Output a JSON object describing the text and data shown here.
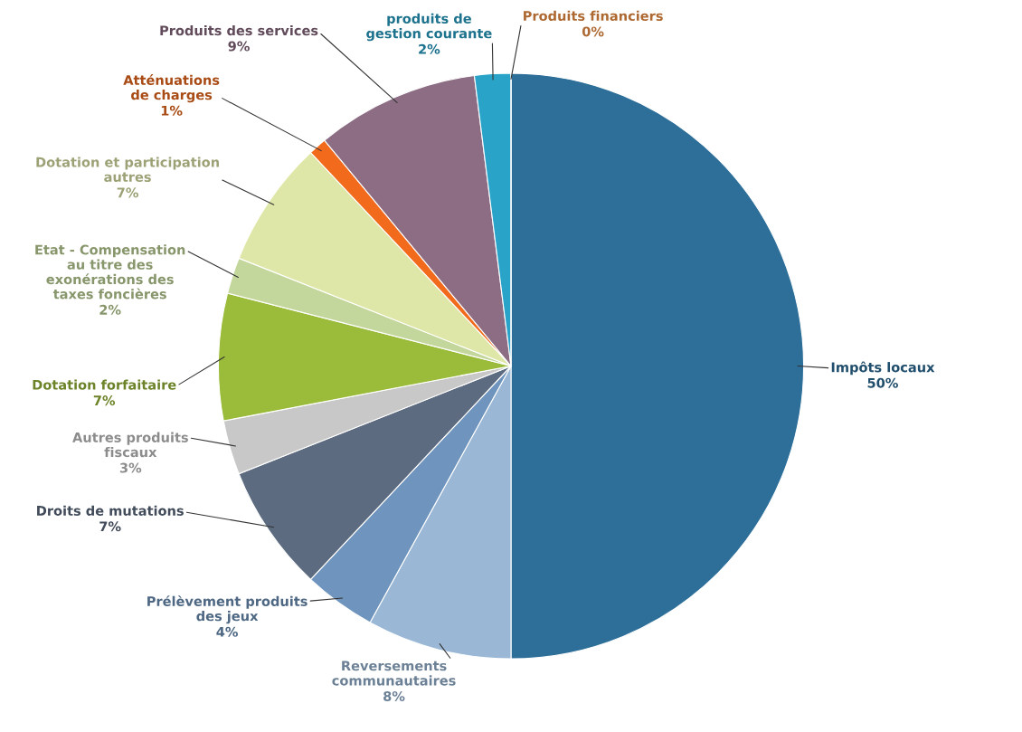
{
  "chart_data": {
    "type": "pie",
    "categories": [
      "Impôts locaux",
      "Reversements communautaires",
      "Prélèvement produits des jeux",
      "Droits de mutations",
      "Autres produits fiscaux",
      "Dotation forfaitaire",
      "Etat - Compensation au titre des exonérations des taxes foncières",
      "Dotation et participation autres",
      "Atténuations de charges",
      "Produits des services",
      "produits de gestion courante",
      "Produits financiers"
    ],
    "values": [
      50,
      8,
      4,
      7,
      3,
      7,
      2,
      7,
      1,
      9,
      2,
      0
    ],
    "colors": [
      "#2e6f9a",
      "#9ab8d6",
      "#6f94bd",
      "#5d6b80",
      "#c8c8c8",
      "#9bbb3b",
      "#c3d69b",
      "#dfe7a8",
      "#f26b1d",
      "#8c6d84",
      "#2aa3c9",
      "#f79646"
    ],
    "value_labels": [
      "50%",
      "8%",
      "4%",
      "7%",
      "3%",
      "7%",
      "2%",
      "7%",
      "1%",
      "9%",
      "2%",
      "0%"
    ]
  }
}
